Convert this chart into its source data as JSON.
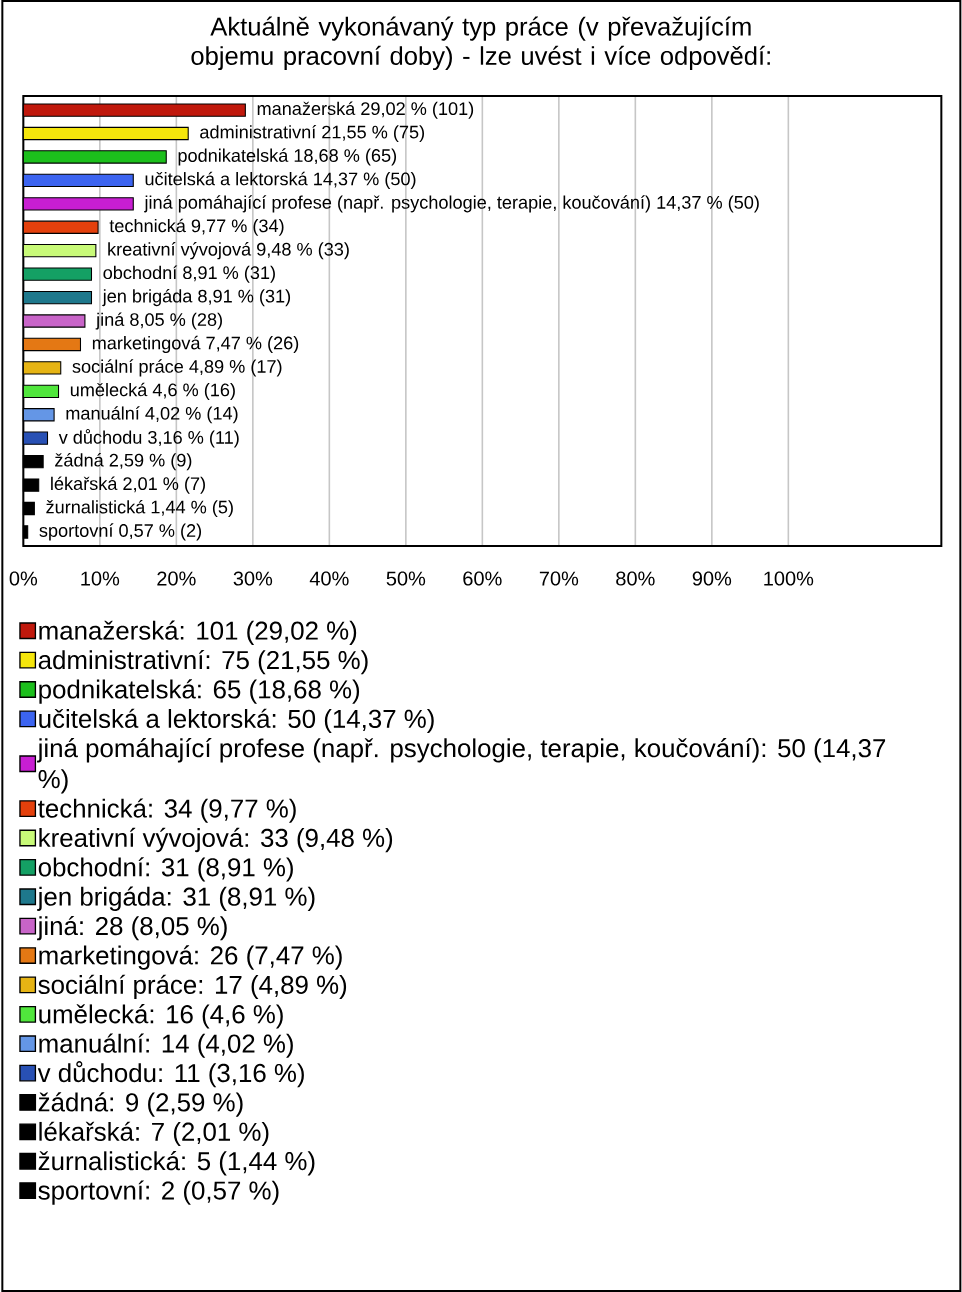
{
  "chart_data": {
    "type": "bar",
    "orientation": "horizontal",
    "title": "Aktuálně vykonávaný typ práce (v převažujícím objemu pracovní doby) - lze uvést i více odpovědí:",
    "categories": [
      null,
      null,
      null,
      null,
      null,
      null,
      null,
      null,
      null,
      null,
      null,
      null,
      null,
      null,
      null,
      null,
      null,
      null,
      null
    ],
    "series": [
      {
        "name": "manažerská: 101 (29,02 %)",
        "color": "#c0180c",
        "values": [
          29.02,
          null,
          null,
          null,
          null,
          null,
          null,
          null,
          null,
          null,
          null,
          null,
          null,
          null,
          null,
          null,
          null,
          null,
          null
        ],
        "value_labels": [
          "manažerská 29,02 % (101)",
          null,
          null,
          null,
          null,
          null,
          null,
          null,
          null,
          null,
          null,
          null,
          null,
          null,
          null,
          null,
          null,
          null,
          null
        ]
      },
      {
        "name": "administrativní: 75 (21,55 %)",
        "color": "#f5e60c",
        "values": [
          null,
          21.55,
          null,
          null,
          null,
          null,
          null,
          null,
          null,
          null,
          null,
          null,
          null,
          null,
          null,
          null,
          null,
          null,
          null
        ],
        "value_labels": [
          null,
          "administrativní 21,55 % (75)",
          null,
          null,
          null,
          null,
          null,
          null,
          null,
          null,
          null,
          null,
          null,
          null,
          null,
          null,
          null,
          null,
          null
        ]
      },
      {
        "name": "podnikatelská: 65 (18,68 %)",
        "color": "#1cbf1c",
        "values": [
          null,
          null,
          18.68,
          null,
          null,
          null,
          null,
          null,
          null,
          null,
          null,
          null,
          null,
          null,
          null,
          null,
          null,
          null,
          null
        ],
        "value_labels": [
          null,
          null,
          "podnikatelská 18,68 % (65)",
          null,
          null,
          null,
          null,
          null,
          null,
          null,
          null,
          null,
          null,
          null,
          null,
          null,
          null,
          null,
          null
        ]
      },
      {
        "name": "učitelská a lektorská: 50 (14,37 %)",
        "color": "#3c64f0",
        "values": [
          null,
          null,
          null,
          14.37,
          null,
          null,
          null,
          null,
          null,
          null,
          null,
          null,
          null,
          null,
          null,
          null,
          null,
          null,
          null
        ],
        "value_labels": [
          null,
          null,
          null,
          "učitelská a lektorská 14,37 % (50)",
          null,
          null,
          null,
          null,
          null,
          null,
          null,
          null,
          null,
          null,
          null,
          null,
          null,
          null,
          null
        ]
      },
      {
        "name": "jiná pomáhající profese (např. psychologie, terapie, koučování): 50 (14,37 %)",
        "color": "#c81ed2",
        "values": [
          null,
          null,
          null,
          null,
          14.37,
          null,
          null,
          null,
          null,
          null,
          null,
          null,
          null,
          null,
          null,
          null,
          null,
          null,
          null
        ],
        "value_labels": [
          null,
          null,
          null,
          null,
          "jiná pomáhající profese (např. psychologie, terapie, koučování) 14,37 % (50)",
          null,
          null,
          null,
          null,
          null,
          null,
          null,
          null,
          null,
          null,
          null,
          null,
          null,
          null
        ]
      },
      {
        "name": "technická: 34 (9,77 %)",
        "color": "#e4400c",
        "values": [
          null,
          null,
          null,
          null,
          null,
          9.77,
          null,
          null,
          null,
          null,
          null,
          null,
          null,
          null,
          null,
          null,
          null,
          null,
          null
        ],
        "value_labels": [
          null,
          null,
          null,
          null,
          null,
          "technická 9,77 % (34)",
          null,
          null,
          null,
          null,
          null,
          null,
          null,
          null,
          null,
          null,
          null,
          null,
          null
        ]
      },
      {
        "name": "kreativní vývojová: 33 (9,48 %)",
        "color": "#c8fa78",
        "values": [
          null,
          null,
          null,
          null,
          null,
          null,
          9.48,
          null,
          null,
          null,
          null,
          null,
          null,
          null,
          null,
          null,
          null,
          null,
          null
        ],
        "value_labels": [
          null,
          null,
          null,
          null,
          null,
          null,
          "kreativní vývojová 9,48 % (33)",
          null,
          null,
          null,
          null,
          null,
          null,
          null,
          null,
          null,
          null,
          null,
          null
        ]
      },
      {
        "name": "obchodní: 31 (8,91 %)",
        "color": "#14a064",
        "values": [
          null,
          null,
          null,
          null,
          null,
          null,
          null,
          8.91,
          null,
          null,
          null,
          null,
          null,
          null,
          null,
          null,
          null,
          null,
          null
        ],
        "value_labels": [
          null,
          null,
          null,
          null,
          null,
          null,
          null,
          "obchodní 8,91 % (31)",
          null,
          null,
          null,
          null,
          null,
          null,
          null,
          null,
          null,
          null,
          null
        ]
      },
      {
        "name": "jen brigáda: 31 (8,91 %)",
        "color": "#1e788c",
        "values": [
          null,
          null,
          null,
          null,
          null,
          null,
          null,
          null,
          8.91,
          null,
          null,
          null,
          null,
          null,
          null,
          null,
          null,
          null,
          null
        ],
        "value_labels": [
          null,
          null,
          null,
          null,
          null,
          null,
          null,
          null,
          "jen brigáda 8,91 % (31)",
          null,
          null,
          null,
          null,
          null,
          null,
          null,
          null,
          null,
          null
        ]
      },
      {
        "name": "jiná: 28 (8,05 %)",
        "color": "#c864c8",
        "values": [
          null,
          null,
          null,
          null,
          null,
          null,
          null,
          null,
          null,
          8.05,
          null,
          null,
          null,
          null,
          null,
          null,
          null,
          null,
          null
        ],
        "value_labels": [
          null,
          null,
          null,
          null,
          null,
          null,
          null,
          null,
          null,
          "jiná 8,05 % (28)",
          null,
          null,
          null,
          null,
          null,
          null,
          null,
          null,
          null
        ]
      },
      {
        "name": "marketingová: 26 (7,47 %)",
        "color": "#e47814",
        "values": [
          null,
          null,
          null,
          null,
          null,
          null,
          null,
          null,
          null,
          null,
          7.47,
          null,
          null,
          null,
          null,
          null,
          null,
          null,
          null
        ],
        "value_labels": [
          null,
          null,
          null,
          null,
          null,
          null,
          null,
          null,
          null,
          null,
          "marketingová 7,47 % (26)",
          null,
          null,
          null,
          null,
          null,
          null,
          null,
          null
        ]
      },
      {
        "name": "sociální práce: 17 (4,89 %)",
        "color": "#e6b414",
        "values": [
          null,
          null,
          null,
          null,
          null,
          null,
          null,
          null,
          null,
          null,
          null,
          4.89,
          null,
          null,
          null,
          null,
          null,
          null,
          null
        ],
        "value_labels": [
          null,
          null,
          null,
          null,
          null,
          null,
          null,
          null,
          null,
          null,
          null,
          "sociální práce 4,89 % (17)",
          null,
          null,
          null,
          null,
          null,
          null,
          null
        ]
      },
      {
        "name": "umělecká: 16 (4,6 %)",
        "color": "#50e63c",
        "values": [
          null,
          null,
          null,
          null,
          null,
          null,
          null,
          null,
          null,
          null,
          null,
          null,
          4.6,
          null,
          null,
          null,
          null,
          null,
          null
        ],
        "value_labels": [
          null,
          null,
          null,
          null,
          null,
          null,
          null,
          null,
          null,
          null,
          null,
          null,
          "umělecká 4,6 % (16)",
          null,
          null,
          null,
          null,
          null,
          null
        ]
      },
      {
        "name": "manuální: 14 (4,02 %)",
        "color": "#6496e6",
        "values": [
          null,
          null,
          null,
          null,
          null,
          null,
          null,
          null,
          null,
          null,
          null,
          null,
          null,
          4.02,
          null,
          null,
          null,
          null,
          null
        ],
        "value_labels": [
          null,
          null,
          null,
          null,
          null,
          null,
          null,
          null,
          null,
          null,
          null,
          null,
          null,
          "manuální 4,02 % (14)",
          null,
          null,
          null,
          null,
          null
        ]
      },
      {
        "name": "v důchodu: 11 (3,16 %)",
        "color": "#2850b4",
        "values": [
          null,
          null,
          null,
          null,
          null,
          null,
          null,
          null,
          null,
          null,
          null,
          null,
          null,
          null,
          3.16,
          null,
          null,
          null,
          null
        ],
        "value_labels": [
          null,
          null,
          null,
          null,
          null,
          null,
          null,
          null,
          null,
          null,
          null,
          null,
          null,
          null,
          "v důchodu 3,16 % (11)",
          null,
          null,
          null,
          null
        ]
      },
      {
        "name": "žádná: 9 (2,59 %)",
        "color": "#000000",
        "values": [
          null,
          null,
          null,
          null,
          null,
          null,
          null,
          null,
          null,
          null,
          null,
          null,
          null,
          null,
          null,
          2.59,
          null,
          null,
          null
        ],
        "value_labels": [
          null,
          null,
          null,
          null,
          null,
          null,
          null,
          null,
          null,
          null,
          null,
          null,
          null,
          null,
          null,
          "žádná 2,59 % (9)",
          null,
          null,
          null
        ]
      },
      {
        "name": "lékařská: 7 (2,01 %)",
        "color": "#000000",
        "values": [
          null,
          null,
          null,
          null,
          null,
          null,
          null,
          null,
          null,
          null,
          null,
          null,
          null,
          null,
          null,
          null,
          2.01,
          null,
          null
        ],
        "value_labels": [
          null,
          null,
          null,
          null,
          null,
          null,
          null,
          null,
          null,
          null,
          null,
          null,
          null,
          null,
          null,
          null,
          "lékařská 2,01 % (7)",
          null,
          null
        ]
      },
      {
        "name": "žurnalistická: 5 (1,44 %)",
        "color": "#000000",
        "values": [
          null,
          null,
          null,
          null,
          null,
          null,
          null,
          null,
          null,
          null,
          null,
          null,
          null,
          null,
          null,
          null,
          null,
          1.44,
          null
        ],
        "value_labels": [
          null,
          null,
          null,
          null,
          null,
          null,
          null,
          null,
          null,
          null,
          null,
          null,
          null,
          null,
          null,
          null,
          null,
          "žurnalistická 1,44 % (5)",
          null
        ]
      },
      {
        "name": "sportovní: 2 (0,57 %)",
        "color": "#000000",
        "values": [
          null,
          null,
          null,
          null,
          null,
          null,
          null,
          null,
          null,
          null,
          null,
          null,
          null,
          null,
          null,
          null,
          null,
          null,
          0.57
        ],
        "value_labels": [
          null,
          null,
          null,
          null,
          null,
          null,
          null,
          null,
          null,
          null,
          null,
          null,
          null,
          null,
          null,
          null,
          null,
          null,
          "sportovní 0,57 % (2)"
        ]
      }
    ],
    "xlim": [
      0,
      120
    ],
    "xticks": [
      {
        "value": 0,
        "label": "0%"
      },
      {
        "value": 10,
        "label": "10%"
      },
      {
        "value": 20,
        "label": "20%"
      },
      {
        "value": 30,
        "label": "30%"
      },
      {
        "value": 40,
        "label": "40%"
      },
      {
        "value": 50,
        "label": "50%"
      },
      {
        "value": 60,
        "label": "60%"
      },
      {
        "value": 70,
        "label": "70%"
      },
      {
        "value": 80,
        "label": "80%"
      },
      {
        "value": 90,
        "label": "90%"
      },
      {
        "value": 100,
        "label": "100%"
      }
    ],
    "grid": "x",
    "tick_labels": "x",
    "legend": "bottom"
  }
}
